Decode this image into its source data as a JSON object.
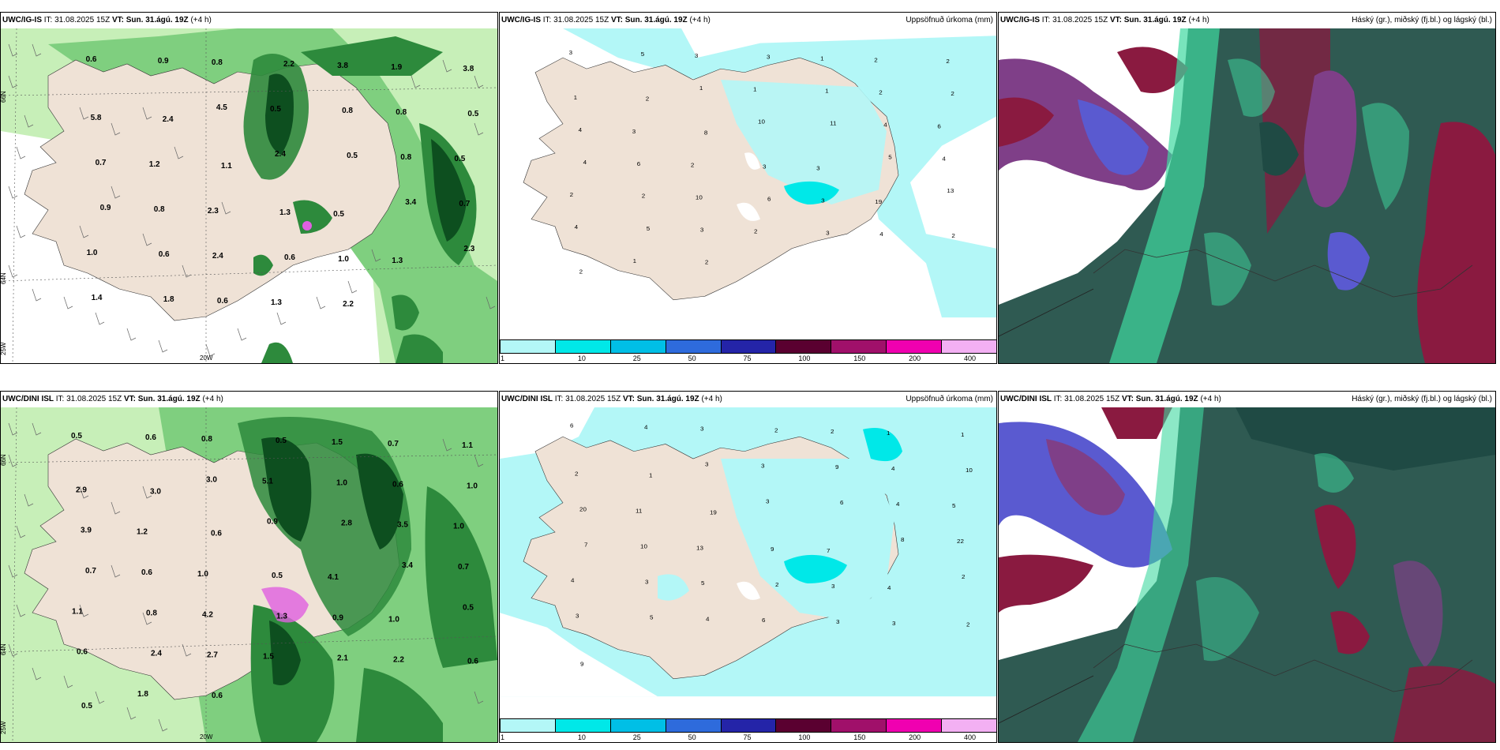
{
  "rows": [
    {
      "model": "UWC/IG-IS",
      "it_label": "IT:",
      "it_value": "31.08.2025 15Z",
      "vt_label": "VT:",
      "vt_value": "Sun. 31.ágú. 19Z",
      "lead": "(+4 h)"
    },
    {
      "model": "UWC/DINI ISL",
      "it_label": "IT:",
      "it_value": "31.08.2025 15Z",
      "vt_label": "VT:",
      "vt_value": "Sun. 31.ágú. 19Z",
      "lead": "(+4 h)"
    }
  ],
  "titles": {
    "precip": "Uppsöfnuð úrkoma (mm)",
    "cloud": "Háský (gr.), miðský (fj.bl.) og lágský (bl.)"
  },
  "axis_labels": {
    "lat66": "66N",
    "lat64": "64N",
    "lon25": "25W",
    "lon20": "20W"
  },
  "legend": {
    "ticks": [
      "1",
      "10",
      "25",
      "50",
      "75",
      "100",
      "150",
      "200",
      "400"
    ],
    "colors": [
      "#b3f7f7",
      "#00e8e8",
      "#00bfe6",
      "#2e6bdc",
      "#2424a8",
      "#5a0030",
      "#a0106a",
      "#f000b0",
      "#f3b0f3"
    ]
  },
  "colors": {
    "land": "#efe2d6",
    "green_light": "#c7efb8",
    "green_mid": "#7fcf7f",
    "green_dark": "#2d8a3c",
    "green_darkest": "#0d4f1f",
    "cyan_light": "#b3f7f7",
    "cyan": "#00e8e8",
    "cloud_base": "#2f5a52",
    "cloud_purple": "#7f3f88",
    "cloud_blue": "#5a5ad0",
    "cloud_red": "#8a1a40",
    "cloud_mint": "#3fd9a0"
  },
  "cloud_values": {
    "ig": [
      {
        "n": "0.6"
      },
      {
        "n": "0.9"
      },
      {
        "n": "0.8"
      },
      {
        "n": "2.2"
      },
      {
        "n": "3.8"
      },
      {
        "n": "1.9"
      },
      {
        "n": "3.8"
      },
      {
        "n": "5.8"
      },
      {
        "n": "2.4"
      },
      {
        "n": "4.5"
      },
      {
        "n": "0.5"
      },
      {
        "n": "0.8"
      },
      {
        "n": "0.8"
      },
      {
        "n": "0.5"
      },
      {
        "n": "0.7"
      },
      {
        "n": "1.2"
      },
      {
        "n": "1.1"
      },
      {
        "n": "2.4"
      },
      {
        "n": "0.5"
      },
      {
        "n": "0.8"
      },
      {
        "n": "0.5"
      },
      {
        "n": "0.9"
      },
      {
        "n": "0.8"
      },
      {
        "n": "2.3"
      },
      {
        "n": "1.3"
      },
      {
        "n": "0.5"
      },
      {
        "n": "3.4"
      },
      {
        "n": "0.7"
      },
      {
        "n": "1.0"
      },
      {
        "n": "0.6"
      },
      {
        "n": "2.4"
      },
      {
        "n": "0.6"
      },
      {
        "n": "1.0"
      },
      {
        "n": "1.3"
      },
      {
        "n": "2.3"
      },
      {
        "n": "1.4"
      },
      {
        "n": "1.8"
      },
      {
        "n": "0.6"
      },
      {
        "n": "1.3"
      },
      {
        "n": "2.2"
      }
    ],
    "dini": [
      {
        "n": "0.5"
      },
      {
        "n": "0.6"
      },
      {
        "n": "0.8"
      },
      {
        "n": "0.5"
      },
      {
        "n": "1.5"
      },
      {
        "n": "0.7"
      },
      {
        "n": "1.1"
      },
      {
        "n": "2.9"
      },
      {
        "n": "3.0"
      },
      {
        "n": "3.0"
      },
      {
        "n": "5.1"
      },
      {
        "n": "1.0"
      },
      {
        "n": "0.6"
      },
      {
        "n": "1.0"
      },
      {
        "n": "3.9"
      },
      {
        "n": "1.2"
      },
      {
        "n": "0.6"
      },
      {
        "n": "0.9"
      },
      {
        "n": "2.8"
      },
      {
        "n": "3.5"
      },
      {
        "n": "1.0"
      },
      {
        "n": "0.7"
      },
      {
        "n": "0.6"
      },
      {
        "n": "1.0"
      },
      {
        "n": "0.5"
      },
      {
        "n": "4.1"
      },
      {
        "n": "3.4"
      },
      {
        "n": "0.7"
      },
      {
        "n": "1.1"
      },
      {
        "n": "0.8"
      },
      {
        "n": "4.2"
      },
      {
        "n": "1.3"
      },
      {
        "n": "0.9"
      },
      {
        "n": "1.0"
      },
      {
        "n": "0.5"
      },
      {
        "n": "0.6"
      },
      {
        "n": "2.4"
      },
      {
        "n": "2.7"
      },
      {
        "n": "1.5"
      },
      {
        "n": "2.1"
      },
      {
        "n": "2.2"
      },
      {
        "n": "0.6"
      },
      {
        "n": "0.5"
      },
      {
        "n": "1.8"
      },
      {
        "n": "0.6"
      }
    ]
  },
  "precip_values": {
    "ig": [
      {
        "n": "3"
      },
      {
        "n": "5"
      },
      {
        "n": "3"
      },
      {
        "n": "3"
      },
      {
        "n": "1"
      },
      {
        "n": "2"
      },
      {
        "n": "2"
      },
      {
        "n": "1"
      },
      {
        "n": "2"
      },
      {
        "n": "1"
      },
      {
        "n": "1"
      },
      {
        "n": "1"
      },
      {
        "n": "2"
      },
      {
        "n": "2"
      },
      {
        "n": "4"
      },
      {
        "n": "3"
      },
      {
        "n": "8"
      },
      {
        "n": "10"
      },
      {
        "n": "11"
      },
      {
        "n": "4"
      },
      {
        "n": "6"
      },
      {
        "n": "4"
      },
      {
        "n": "6"
      },
      {
        "n": "2"
      },
      {
        "n": "3"
      },
      {
        "n": "3"
      },
      {
        "n": "5"
      },
      {
        "n": "4"
      },
      {
        "n": "2"
      },
      {
        "n": "2"
      },
      {
        "n": "10"
      },
      {
        "n": "6"
      },
      {
        "n": "3"
      },
      {
        "n": "19"
      },
      {
        "n": "13"
      },
      {
        "n": "4"
      },
      {
        "n": "5"
      },
      {
        "n": "3"
      },
      {
        "n": "2"
      },
      {
        "n": "3"
      },
      {
        "n": "4"
      },
      {
        "n": "2"
      },
      {
        "n": "2"
      },
      {
        "n": "1"
      },
      {
        "n": "2"
      }
    ],
    "dini": [
      {
        "n": "6"
      },
      {
        "n": "4"
      },
      {
        "n": "3"
      },
      {
        "n": "2"
      },
      {
        "n": "2"
      },
      {
        "n": "1"
      },
      {
        "n": "1"
      },
      {
        "n": "2"
      },
      {
        "n": "1"
      },
      {
        "n": "3"
      },
      {
        "n": "3"
      },
      {
        "n": "9"
      },
      {
        "n": "4"
      },
      {
        "n": "10"
      },
      {
        "n": "20"
      },
      {
        "n": "11"
      },
      {
        "n": "19"
      },
      {
        "n": "3"
      },
      {
        "n": "6"
      },
      {
        "n": "4"
      },
      {
        "n": "5"
      },
      {
        "n": "7"
      },
      {
        "n": "10"
      },
      {
        "n": "13"
      },
      {
        "n": "9"
      },
      {
        "n": "7"
      },
      {
        "n": "8"
      },
      {
        "n": "22"
      },
      {
        "n": "4"
      },
      {
        "n": "3"
      },
      {
        "n": "5"
      },
      {
        "n": "2"
      },
      {
        "n": "3"
      },
      {
        "n": "4"
      },
      {
        "n": "2"
      },
      {
        "n": "3"
      },
      {
        "n": "5"
      },
      {
        "n": "4"
      },
      {
        "n": "6"
      },
      {
        "n": "3"
      },
      {
        "n": "3"
      },
      {
        "n": "2"
      },
      {
        "n": "9"
      }
    ]
  }
}
